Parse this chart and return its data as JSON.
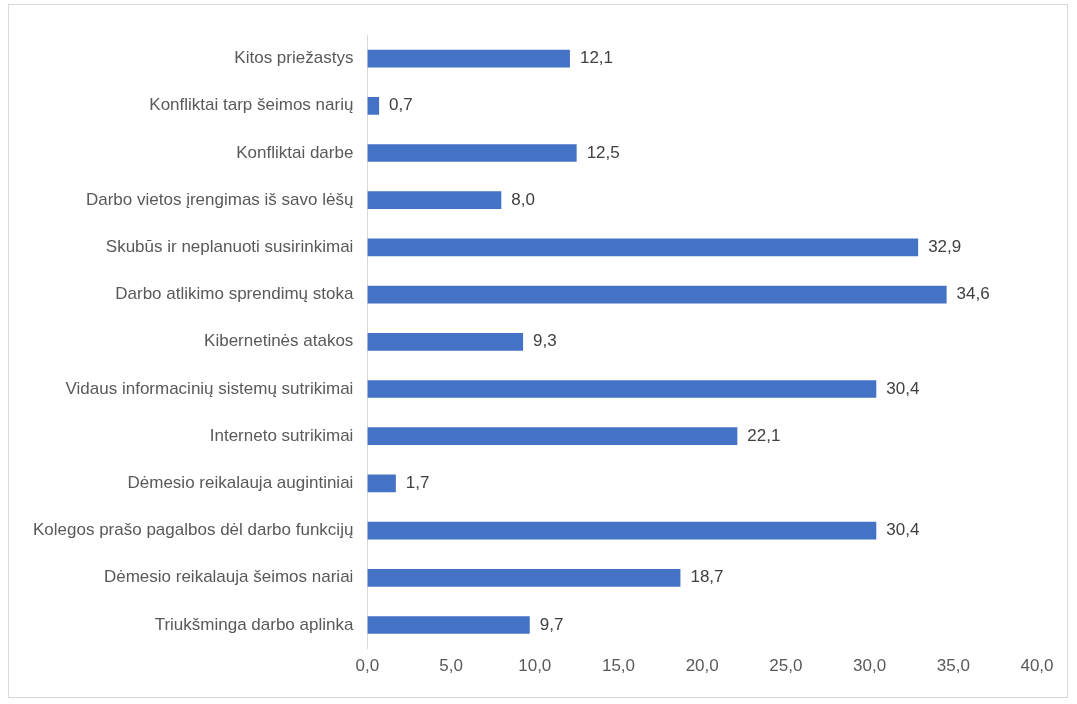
{
  "chart_data": {
    "type": "bar",
    "orientation": "horizontal",
    "categories": [
      "Kitos priežastys",
      "Konfliktai tarp šeimos narių",
      "Konfliktai darbe",
      "Darbo vietos įrengimas iš savo lėšų",
      "Skubūs ir neplanuoti susirinkimai",
      "Darbo atlikimo sprendimų stoka",
      "Kibernetinės atakos",
      "Vidaus informacinių sistemų sutrikimai",
      "Interneto sutrikimai",
      "Dėmesio reikalauja augintiniai",
      "Kolegos prašo pagalbos dėl darbo funkcijų",
      "Dėmesio reikalauja šeimos nariai",
      "Triukšminga darbo aplinka"
    ],
    "values": [
      12.1,
      0.7,
      12.5,
      8.0,
      32.9,
      34.6,
      9.3,
      30.4,
      22.1,
      1.7,
      30.4,
      18.7,
      9.7
    ],
    "value_labels": [
      "12,1",
      "0,7",
      "12,5",
      "8,0",
      "32,9",
      "34,6",
      "9,3",
      "30,4",
      "22,1",
      "1,7",
      "30,4",
      "18,7",
      "9,7"
    ],
    "color": "#4472c4",
    "xlim": [
      0,
      40
    ],
    "xticks": [
      {
        "value": 0,
        "label": "0,0"
      },
      {
        "value": 5,
        "label": "5,0"
      },
      {
        "value": 10,
        "label": "10,0"
      },
      {
        "value": 15,
        "label": "15,0"
      },
      {
        "value": 20,
        "label": "20,0"
      },
      {
        "value": 25,
        "label": "25,0"
      },
      {
        "value": 30,
        "label": "30,0"
      },
      {
        "value": 35,
        "label": "35,0"
      },
      {
        "value": 40,
        "label": "40,0"
      }
    ],
    "grid": false
  }
}
